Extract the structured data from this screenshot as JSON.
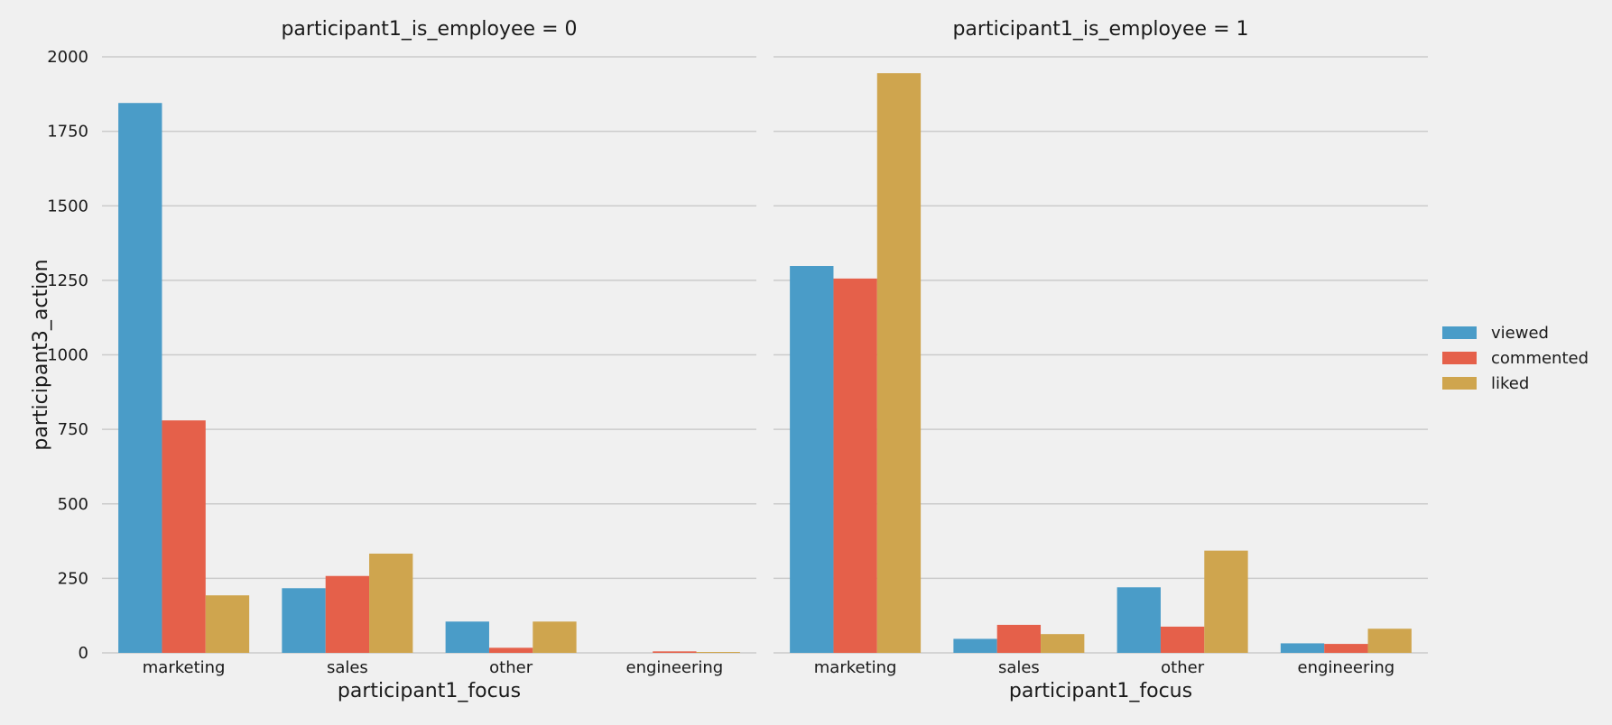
{
  "chart_data": {
    "type": "bar",
    "ylabel": "participant3_action",
    "ylim": [
      0,
      2000
    ],
    "yticks": [
      0,
      250,
      500,
      750,
      1000,
      1250,
      1500,
      1750,
      2000
    ],
    "grid": true,
    "legend_position": "right",
    "legend": [
      {
        "label": "viewed",
        "color": "#4a9cc8"
      },
      {
        "label": "commented",
        "color": "#e5604a"
      },
      {
        "label": "liked",
        "color": "#cfa54e"
      }
    ],
    "panels": [
      {
        "title": "participant1_is_employee = 0",
        "xlabel": "participant1_focus",
        "categories": [
          "marketing",
          "sales",
          "other",
          "engineering"
        ],
        "series": [
          {
            "name": "viewed",
            "values": [
              1845,
              217,
              105,
              0
            ]
          },
          {
            "name": "commented",
            "values": [
              780,
              258,
              17,
              5
            ]
          },
          {
            "name": "liked",
            "values": [
              193,
              333,
              105,
              3
            ]
          }
        ]
      },
      {
        "title": "participant1_is_employee = 1",
        "xlabel": "participant1_focus",
        "categories": [
          "marketing",
          "sales",
          "other",
          "engineering"
        ],
        "series": [
          {
            "name": "viewed",
            "values": [
              1298,
              47,
              220,
              32
            ]
          },
          {
            "name": "commented",
            "values": [
              1256,
              94,
              88,
              30
            ]
          },
          {
            "name": "liked",
            "values": [
              1945,
              63,
              343,
              81
            ]
          }
        ]
      }
    ]
  }
}
